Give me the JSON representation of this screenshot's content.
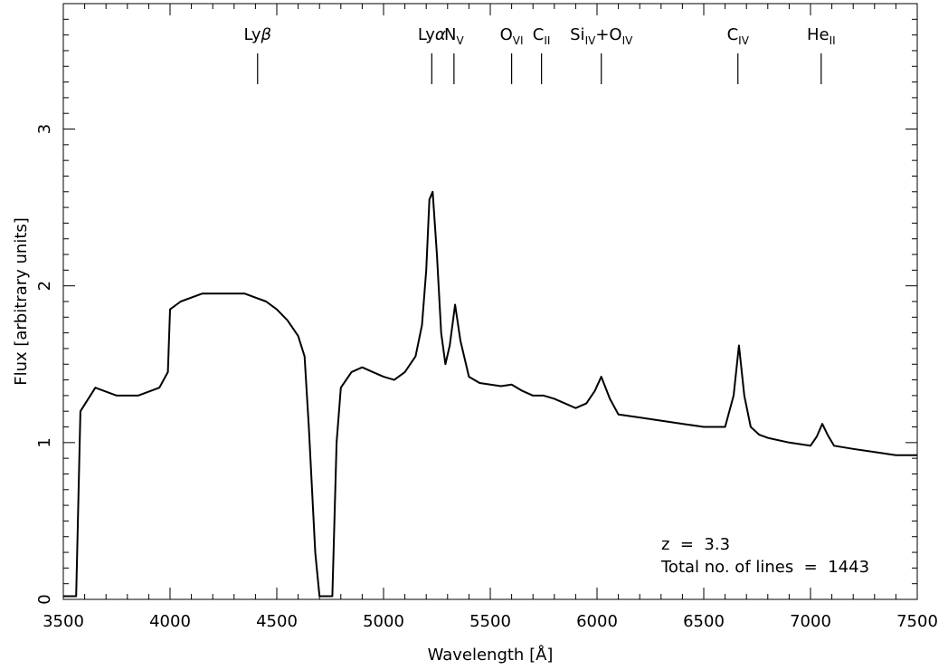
{
  "chart_data": {
    "type": "line",
    "title": "",
    "xlabel": "Wavelength [Å]",
    "ylabel": "Flux [arbitrary units]",
    "xlim": [
      3500,
      7500
    ],
    "ylim": [
      0,
      3.8
    ],
    "x_ticks": [
      3500,
      4000,
      4500,
      5000,
      5500,
      6000,
      6500,
      7000,
      7500
    ],
    "y_ticks": [
      0,
      1,
      2,
      3
    ],
    "grid": false,
    "series": [
      {
        "x": [
          3500,
          3560,
          3580,
          3650,
          3750,
          3850,
          3950,
          3990,
          4000,
          4050,
          4150,
          4250,
          4350,
          4450,
          4500,
          4550,
          4600,
          4630,
          4650,
          4680,
          4700,
          4720,
          4740,
          4760,
          4780,
          4800,
          4850,
          4900,
          4950,
          5000,
          5050,
          5100,
          5150,
          5180,
          5200,
          5215,
          5230,
          5250,
          5270,
          5290,
          5310,
          5335,
          5360,
          5400,
          5450,
          5500,
          5550,
          5600,
          5650,
          5700,
          5750,
          5800,
          5850,
          5900,
          5950,
          5990,
          6020,
          6060,
          6100,
          6200,
          6300,
          6400,
          6500,
          6600,
          6640,
          6665,
          6690,
          6720,
          6760,
          6800,
          6900,
          7000,
          7030,
          7055,
          7080,
          7110,
          7200,
          7300,
          7400,
          7500
        ],
        "y": [
          0.02,
          0.02,
          1.2,
          1.35,
          1.3,
          1.3,
          1.35,
          1.45,
          1.85,
          1.9,
          1.95,
          1.95,
          1.95,
          1.9,
          1.85,
          1.78,
          1.68,
          1.55,
          1.1,
          0.3,
          0.02,
          0.02,
          0.02,
          0.02,
          1.0,
          1.35,
          1.45,
          1.48,
          1.45,
          1.42,
          1.4,
          1.45,
          1.55,
          1.75,
          2.1,
          2.55,
          2.6,
          2.2,
          1.7,
          1.5,
          1.62,
          1.88,
          1.65,
          1.42,
          1.38,
          1.37,
          1.36,
          1.37,
          1.33,
          1.3,
          1.3,
          1.28,
          1.25,
          1.22,
          1.25,
          1.33,
          1.42,
          1.28,
          1.18,
          1.16,
          1.14,
          1.12,
          1.1,
          1.1,
          1.3,
          1.62,
          1.3,
          1.1,
          1.05,
          1.03,
          1.0,
          0.98,
          1.04,
          1.12,
          1.05,
          0.98,
          0.96,
          0.94,
          0.92,
          0.92
        ]
      }
    ],
    "line_labels": [
      {
        "name": "Lyβ",
        "base": "Ly",
        "sub": "",
        "greek": "β",
        "x": 4410
      },
      {
        "name": "Lyα",
        "base": "Ly",
        "sub": "",
        "greek": "α",
        "x": 5226
      },
      {
        "name": "NV",
        "base": "N",
        "sub": "V",
        "greek": "",
        "x": 5330
      },
      {
        "name": "OVI",
        "base": "O",
        "sub": "VI",
        "greek": "",
        "x": 5600
      },
      {
        "name": "CII",
        "base": "C",
        "sub": "II",
        "greek": "",
        "x": 5740
      },
      {
        "name": "SiIV+OIV",
        "base": "Si",
        "sub": "IV",
        "greek": "",
        "extra_base": "+O",
        "extra_sub": "IV",
        "x": 6020
      },
      {
        "name": "CIV",
        "base": "C",
        "sub": "IV",
        "greek": "",
        "x": 6660
      },
      {
        "name": "HeII",
        "base": "He",
        "sub": "II",
        "greek": "",
        "x": 7050
      }
    ],
    "annotations": [
      "z  =  3.3",
      "Total no. of lines  =  1443"
    ]
  }
}
